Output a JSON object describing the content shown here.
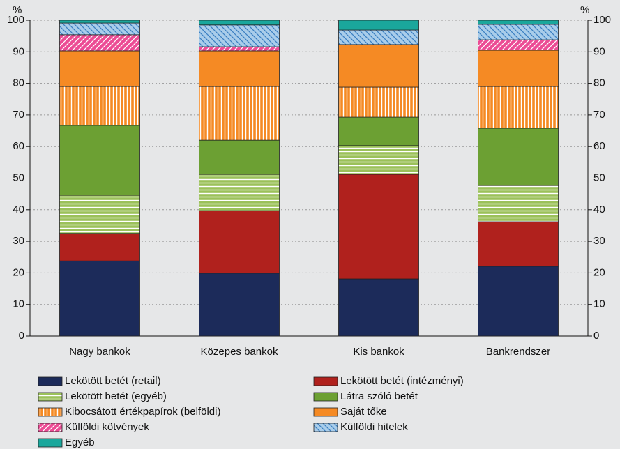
{
  "chart_data": {
    "type": "stacked_bar",
    "y_label": "%",
    "y2_label": "%",
    "categories": [
      "Nagy bankok",
      "Közepes bankok",
      "Kis bankok",
      "Bankrendszer"
    ],
    "series": [
      {
        "name": "Lekötött betét (retail)",
        "color": "#1c2b5a",
        "values": [
          23.8,
          19.9,
          18.1,
          22.1
        ]
      },
      {
        "name": "Lekötött betét (intézményi)",
        "color": "#b0211d",
        "values": [
          8.7,
          19.8,
          33.1,
          14.1
        ]
      },
      {
        "name": "Lekötött betét (egyéb)",
        "color": "#9bc15a",
        "pattern": "horizontal",
        "values": [
          12.1,
          11.5,
          9.1,
          11.5
        ]
      },
      {
        "name": "Látra szóló betét",
        "color": "#6ca033",
        "values": [
          22.1,
          10.8,
          9.0,
          18.1
        ]
      },
      {
        "name": "Kibocsátott értékpapírok (belföldi)",
        "color": "#f58a24",
        "pattern": "vertical",
        "values": [
          12.3,
          17.0,
          9.5,
          13.2
        ]
      },
      {
        "name": "Saját tőke",
        "color": "#f58a24",
        "values": [
          11.3,
          11.3,
          13.5,
          11.5
        ]
      },
      {
        "name": "Külföldi kötvények",
        "color": "#ec4c95",
        "pattern": "diagonal-up",
        "values": [
          5.1,
          1.3,
          0,
          3.3
        ]
      },
      {
        "name": "Külföldi hitelek",
        "color": "#a9cdea",
        "pattern": "diagonal-down",
        "values": [
          3.7,
          6.9,
          4.6,
          4.9
        ]
      },
      {
        "name": "Egyéb",
        "color": "#1aa79c",
        "values": [
          0.9,
          1.5,
          3.1,
          1.3
        ]
      }
    ],
    "ylim": [
      0,
      100
    ],
    "yticks": [
      0,
      10,
      20,
      30,
      40,
      50,
      60,
      70,
      80,
      90,
      100
    ],
    "y2lim": [
      0,
      100
    ],
    "y2ticks": [
      0,
      10,
      20,
      30,
      40,
      50,
      60,
      70,
      80,
      90,
      100
    ],
    "grid": true
  }
}
